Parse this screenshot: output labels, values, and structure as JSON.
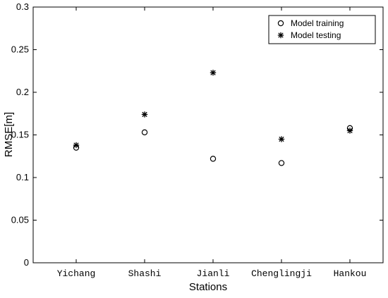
{
  "chart_data": {
    "type": "scatter",
    "title": "",
    "xlabel": "Stations",
    "ylabel": "RMSE[m]",
    "categories": [
      "Yichang",
      "Shashi",
      "Jianli",
      "Chenglingji",
      "Hankou"
    ],
    "ylim": [
      0,
      0.3
    ],
    "yticks": [
      "0",
      "0.05",
      "0.1",
      "0.15",
      "0.2",
      "0.25",
      "0.3"
    ],
    "grid": false,
    "legend": "top-right",
    "series": [
      {
        "name": "Model training",
        "marker": "circle",
        "values": [
          0.135,
          0.153,
          0.122,
          0.117,
          0.158
        ]
      },
      {
        "name": "Model testing",
        "marker": "asterisk",
        "values": [
          0.138,
          0.174,
          0.223,
          0.145,
          0.155
        ]
      }
    ],
    "colors": {
      "marker": "#000000",
      "axis": "#000000",
      "background": "#ffffff"
    }
  }
}
